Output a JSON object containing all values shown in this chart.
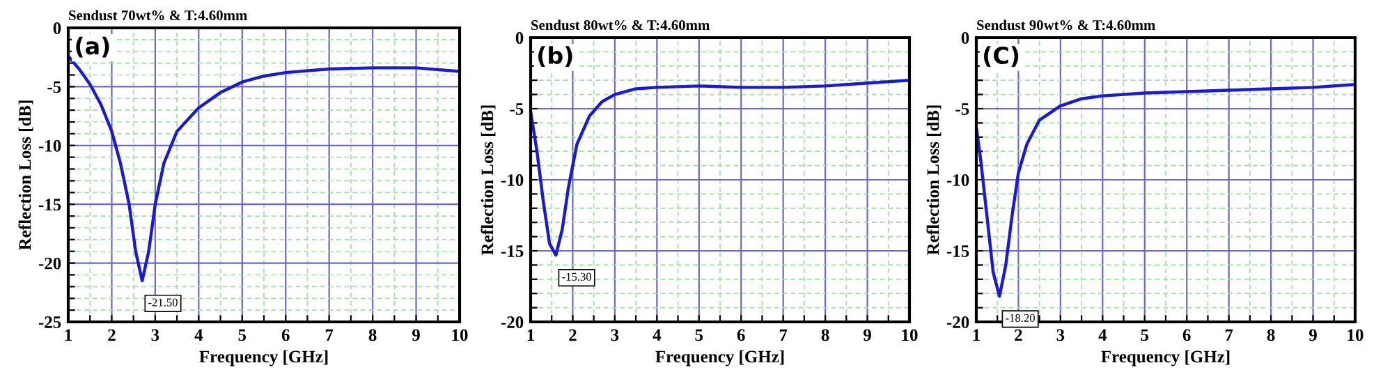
{
  "chart_data": [
    {
      "type": "line",
      "title": "Sendust 70wt% & T:4.60mm",
      "xlabel": "Frequency [GHz]",
      "ylabel": "Reflection Loss [dB]",
      "annotations": [
        "(a)",
        {
          "text": "-21.50",
          "x": 2.7,
          "y": -21.5
        }
      ],
      "x": [
        1,
        1.25,
        1.5,
        1.75,
        2,
        2.2,
        2.4,
        2.55,
        2.7,
        2.85,
        3.0,
        3.2,
        3.5,
        4,
        4.5,
        5,
        5.5,
        6,
        7,
        8,
        9,
        10
      ],
      "series": [
        {
          "color": "#1a1ad0",
          "values": [
            -2.4,
            -3.5,
            -4.8,
            -6.5,
            -8.8,
            -11.5,
            -15,
            -19,
            -21.5,
            -19,
            -15,
            -11.5,
            -8.8,
            -6.8,
            -5.5,
            -4.6,
            -4.1,
            -3.8,
            -3.5,
            -3.4,
            -3.4,
            -3.7
          ]
        }
      ],
      "xlim": [
        1,
        10
      ],
      "xticks": [
        1,
        {
          "value": 1.5,
          "label": null
        },
        2,
        {
          "value": 2.5,
          "label": null
        },
        3,
        {
          "value": 3.5,
          "label": null
        },
        4,
        {
          "value": 4.5,
          "label": null
        },
        5,
        {
          "value": 5.5,
          "label": null
        },
        6,
        {
          "value": 6.5,
          "label": null
        },
        7,
        {
          "value": 7.5,
          "label": null
        },
        8,
        {
          "value": 8.5,
          "label": null
        },
        9,
        {
          "value": 9.5,
          "label": null
        },
        10
      ],
      "ylim": [
        -25,
        0
      ],
      "yticks": [
        -25,
        {
          "value": -24,
          "label": null
        },
        {
          "value": -23,
          "label": null
        },
        {
          "value": -22,
          "label": null
        },
        {
          "value": -21,
          "label": null
        },
        -20,
        {
          "value": -19,
          "label": null
        },
        {
          "value": -18,
          "label": null
        },
        {
          "value": -17,
          "label": null
        },
        {
          "value": -16,
          "label": null
        },
        -15,
        {
          "value": -14,
          "label": null
        },
        {
          "value": -13,
          "label": null
        },
        {
          "value": -12,
          "label": null
        },
        {
          "value": -11,
          "label": null
        },
        -10,
        {
          "value": -9,
          "label": null
        },
        {
          "value": -8,
          "label": null
        },
        {
          "value": -7,
          "label": null
        },
        {
          "value": -6,
          "label": null
        },
        -5,
        {
          "value": -4,
          "label": null
        },
        {
          "value": -3,
          "label": null
        },
        {
          "value": -2,
          "label": null
        },
        {
          "value": -1,
          "label": null
        },
        0
      ],
      "grid": true,
      "line_style": "solid",
      "marker": "none"
    },
    {
      "type": "line",
      "title": "Sendust 80wt% & T:4.60mm",
      "xlabel": "Frequency [GHz]",
      "ylabel": "Reflection Loss [dB]",
      "annotations": [
        "(b)",
        {
          "text": "-15.30",
          "x": 1.6,
          "y": -15.3
        }
      ],
      "x": [
        1,
        1.15,
        1.3,
        1.45,
        1.6,
        1.75,
        1.9,
        2.1,
        2.4,
        2.7,
        3,
        3.5,
        4,
        5,
        6,
        7,
        8,
        9,
        10
      ],
      "series": [
        {
          "color": "#1a1ad0",
          "values": [
            -5.2,
            -8,
            -11.5,
            -14.5,
            -15.3,
            -13.5,
            -10.5,
            -7.5,
            -5.5,
            -4.5,
            -4.0,
            -3.6,
            -3.5,
            -3.4,
            -3.5,
            -3.5,
            -3.4,
            -3.2,
            -3.0
          ]
        }
      ],
      "xlim": [
        1,
        10
      ],
      "xticks": [
        1,
        {
          "value": 1.5,
          "label": null
        },
        2,
        {
          "value": 2.5,
          "label": null
        },
        3,
        {
          "value": 3.5,
          "label": null
        },
        4,
        {
          "value": 4.5,
          "label": null
        },
        5,
        {
          "value": 5.5,
          "label": null
        },
        6,
        {
          "value": 6.5,
          "label": null
        },
        7,
        {
          "value": 7.5,
          "label": null
        },
        8,
        {
          "value": 8.5,
          "label": null
        },
        9,
        {
          "value": 9.5,
          "label": null
        },
        10
      ],
      "ylim": [
        -20,
        0
      ],
      "yticks": [
        -20,
        {
          "value": -19,
          "label": null
        },
        {
          "value": -18,
          "label": null
        },
        {
          "value": -17,
          "label": null
        },
        {
          "value": -16,
          "label": null
        },
        -15,
        {
          "value": -14,
          "label": null
        },
        {
          "value": -13,
          "label": null
        },
        {
          "value": -12,
          "label": null
        },
        {
          "value": -11,
          "label": null
        },
        -10,
        {
          "value": -9,
          "label": null
        },
        {
          "value": -8,
          "label": null
        },
        {
          "value": -7,
          "label": null
        },
        {
          "value": -6,
          "label": null
        },
        -5,
        {
          "value": -4,
          "label": null
        },
        {
          "value": -3,
          "label": null
        },
        {
          "value": -2,
          "label": null
        },
        {
          "value": -1,
          "label": null
        },
        0
      ],
      "grid": true,
      "line_style": "solid",
      "marker": "none"
    },
    {
      "type": "line",
      "title": "Sendust 90wt% & T:4.60mm",
      "xlabel": "Frequency [GHz]",
      "ylabel": "Reflection Loss [dB]",
      "annotations": [
        "(C)",
        {
          "text": "-18.20",
          "x": 1.55,
          "y": -18.2
        }
      ],
      "x": [
        1,
        1.1,
        1.25,
        1.4,
        1.55,
        1.7,
        1.85,
        2.0,
        2.2,
        2.5,
        3,
        3.5,
        4,
        5,
        6,
        7,
        8,
        9,
        10
      ],
      "series": [
        {
          "color": "#1a1ad0",
          "values": [
            -6.3,
            -8.5,
            -12.5,
            -16.5,
            -18.2,
            -16,
            -12.5,
            -9.5,
            -7.5,
            -5.8,
            -4.8,
            -4.3,
            -4.1,
            -3.9,
            -3.8,
            -3.7,
            -3.6,
            -3.5,
            -3.3
          ]
        }
      ],
      "xlim": [
        1,
        10
      ],
      "xticks": [
        1,
        {
          "value": 1.5,
          "label": null
        },
        2,
        {
          "value": 2.5,
          "label": null
        },
        3,
        {
          "value": 3.5,
          "label": null
        },
        4,
        {
          "value": 4.5,
          "label": null
        },
        5,
        {
          "value": 5.5,
          "label": null
        },
        6,
        {
          "value": 6.5,
          "label": null
        },
        7,
        {
          "value": 7.5,
          "label": null
        },
        8,
        {
          "value": 8.5,
          "label": null
        },
        9,
        {
          "value": 9.5,
          "label": null
        },
        10
      ],
      "ylim": [
        -20,
        0
      ],
      "yticks": [
        -20,
        {
          "value": -19,
          "label": null
        },
        {
          "value": -18,
          "label": null
        },
        {
          "value": -17,
          "label": null
        },
        {
          "value": -16,
          "label": null
        },
        -15,
        {
          "value": -14,
          "label": null
        },
        {
          "value": -13,
          "label": null
        },
        {
          "value": -12,
          "label": null
        },
        {
          "value": -11,
          "label": null
        },
        -10,
        {
          "value": -9,
          "label": null
        },
        {
          "value": -8,
          "label": null
        },
        {
          "value": -7,
          "label": null
        },
        {
          "value": -6,
          "label": null
        },
        -5,
        {
          "value": -4,
          "label": null
        },
        {
          "value": -3,
          "label": null
        },
        {
          "value": -2,
          "label": null
        },
        {
          "value": -1,
          "label": null
        },
        0
      ],
      "grid": true,
      "line_style": "solid",
      "marker": "none"
    }
  ]
}
